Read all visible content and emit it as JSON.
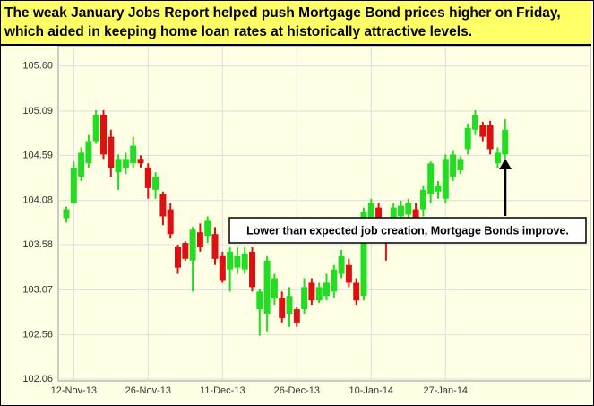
{
  "chart_data": {
    "type": "candlestick",
    "title": "The weak January Jobs Report helped push Mortgage Bond prices higher on Friday, which aided in keeping home loan rates at historically attractive levels.",
    "annotation": "Lower than expected job creation, Mortgage Bonds improve.",
    "categories": [
      null,
      "12-Nov-13",
      null,
      null,
      null,
      null,
      null,
      null,
      null,
      null,
      null,
      "26-Nov-13",
      null,
      null,
      null,
      null,
      null,
      null,
      null,
      null,
      null,
      "11-Dec-13",
      null,
      null,
      null,
      null,
      null,
      null,
      null,
      null,
      null,
      "26-Dec-13",
      null,
      null,
      null,
      null,
      null,
      null,
      null,
      null,
      null,
      "10-Jan-14",
      null,
      null,
      null,
      null,
      null,
      null,
      null,
      null,
      null,
      "27-Jan-14",
      null,
      null,
      null,
      null,
      null,
      null,
      null,
      null
    ],
    "open": [
      103.88,
      104.05,
      104.35,
      104.5,
      104.75,
      105.05,
      104.8,
      104.4,
      104.45,
      104.5,
      104.55,
      104.45,
      104.2,
      104.15,
      103.98,
      103.55,
      103.6,
      103.4,
      103.72,
      103.68,
      103.7,
      103.45,
      103.3,
      103.32,
      103.3,
      103.5,
      102.85,
      102.8,
      102.97,
      102.98,
      102.8,
      102.85,
      102.85,
      103.15,
      102.95,
      103.0,
      103.05,
      103.25,
      103.35,
      103.15,
      103.0,
      103.85,
      104.0,
      103.8,
      103.85,
      103.9,
      103.92,
      103.98,
      103.98,
      104.15,
      104.18,
      104.1,
      104.35,
      104.42,
      104.66,
      104.88,
      104.93,
      104.93,
      104.5,
      104.6
    ],
    "high": [
      104.01,
      104.52,
      104.68,
      104.82,
      105.1,
      105.1,
      104.88,
      104.6,
      104.62,
      104.8,
      104.59,
      104.5,
      104.4,
      104.18,
      104.05,
      103.58,
      103.62,
      103.78,
      103.82,
      103.9,
      103.78,
      103.5,
      103.55,
      103.55,
      103.55,
      103.55,
      103.08,
      103.45,
      103.25,
      103.05,
      103.1,
      102.88,
      103.2,
      103.2,
      103.15,
      103.25,
      103.35,
      103.52,
      103.42,
      103.2,
      104.0,
      104.1,
      104.05,
      103.85,
      104.05,
      104.08,
      104.1,
      104.05,
      104.25,
      104.52,
      104.3,
      104.6,
      104.65,
      104.58,
      104.95,
      105.1,
      104.97,
      104.98,
      104.68,
      105.0
    ],
    "low": [
      103.83,
      104.04,
      104.3,
      104.45,
      104.72,
      104.55,
      104.35,
      104.2,
      104.38,
      104.45,
      104.45,
      104.1,
      104.1,
      103.8,
      103.65,
      103.25,
      103.4,
      103.05,
      103.5,
      103.6,
      103.35,
      103.15,
      103.05,
      103.25,
      103.25,
      103.05,
      102.55,
      102.6,
      102.9,
      102.7,
      102.65,
      102.65,
      102.8,
      102.9,
      102.92,
      102.95,
      102.98,
      103.2,
      103.1,
      102.9,
      102.95,
      103.8,
      103.8,
      103.4,
      103.75,
      103.85,
      103.88,
      103.78,
      103.9,
      104.05,
      104.1,
      104.05,
      104.3,
      104.38,
      104.6,
      104.82,
      104.75,
      104.6,
      104.45,
      104.55
    ],
    "close": [
      103.98,
      104.45,
      104.62,
      104.75,
      105.05,
      104.6,
      104.45,
      104.55,
      104.55,
      104.7,
      104.5,
      104.22,
      104.35,
      103.9,
      103.7,
      103.32,
      103.42,
      103.75,
      103.55,
      103.85,
      103.42,
      103.18,
      103.5,
      103.45,
      103.48,
      103.1,
      103.05,
      103.4,
      103.2,
      102.75,
      103.0,
      102.7,
      103.1,
      102.95,
      103.1,
      103.15,
      103.3,
      103.45,
      103.15,
      102.95,
      103.95,
      104.05,
      103.85,
      103.6,
      104.0,
      104.02,
      104.05,
      103.85,
      104.2,
      104.5,
      104.25,
      104.55,
      104.6,
      104.55,
      104.9,
      105.05,
      104.8,
      104.66,
      104.62,
      104.88
    ],
    "up_color": "#22dd22",
    "down_color": "#dd1111",
    "ylim": [
      102.04,
      105.83
    ],
    "yticks": [
      102.06,
      102.56,
      103.07,
      103.58,
      104.08,
      104.59,
      105.09,
      {
        "value": 105.6,
        "label": "105.60"
      }
    ],
    "grid": true
  }
}
